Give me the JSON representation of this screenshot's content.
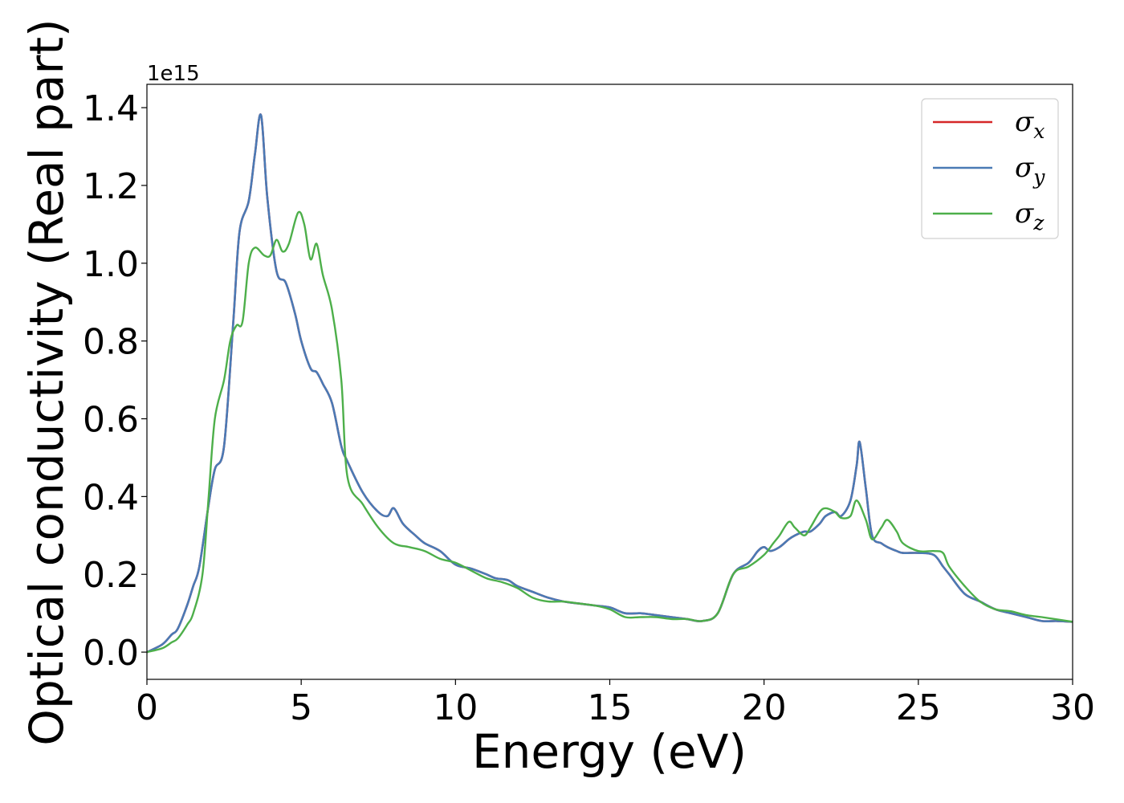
{
  "chart_data": {
    "type": "line",
    "xlabel": "Energy (eV)",
    "ylabel": "Optical conductivity (Real part)",
    "y_offset_label": "1e15",
    "xlim": [
      0,
      30
    ],
    "ylim": [
      -0.07,
      1.46
    ],
    "x_ticks": [
      0,
      5,
      10,
      15,
      20,
      25,
      30
    ],
    "x_tick_labels": [
      "0",
      "5",
      "10",
      "15",
      "20",
      "25",
      "30"
    ],
    "y_ticks": [
      0.0,
      0.2,
      0.4,
      0.6,
      0.8,
      1.0,
      1.2,
      1.4
    ],
    "y_tick_labels": [
      "0.0",
      "0.2",
      "0.4",
      "0.6",
      "0.8",
      "1.0",
      "1.2",
      "1.4"
    ],
    "grid": false,
    "legend_position": "top-right",
    "series": [
      {
        "name": "σx",
        "symbol": "σ",
        "subscript": "x",
        "color": "#d62728",
        "x": [
          0,
          0.5,
          0.8,
          1.0,
          1.3,
          1.5,
          1.7,
          2.0,
          2.2,
          2.5,
          2.8,
          3.0,
          3.3,
          3.5,
          3.7,
          3.9,
          4.2,
          4.5,
          4.8,
          5.0,
          5.3,
          5.5,
          5.7,
          6.0,
          6.3,
          6.5,
          7.0,
          7.5,
          7.8,
          8.0,
          8.3,
          8.7,
          9.0,
          9.5,
          10.0,
          10.5,
          11.0,
          11.3,
          11.7,
          12.0,
          12.5,
          13.0,
          13.5,
          14.0,
          14.5,
          15.0,
          15.5,
          16.0,
          16.5,
          17.0,
          17.5,
          18.0,
          18.5,
          19.0,
          19.5,
          19.8,
          20.0,
          20.2,
          20.5,
          20.8,
          21.0,
          21.3,
          21.5,
          21.8,
          22.0,
          22.3,
          22.5,
          22.8,
          23.0,
          23.1,
          23.3,
          23.5,
          23.8,
          24.0,
          24.3,
          24.5,
          25.0,
          25.5,
          25.8,
          26.0,
          26.5,
          27.0,
          27.5,
          28.0,
          28.5,
          29.0,
          29.5,
          30.0
        ],
        "values": [
          0.0,
          0.02,
          0.045,
          0.06,
          0.12,
          0.17,
          0.22,
          0.38,
          0.47,
          0.53,
          0.85,
          1.08,
          1.16,
          1.28,
          1.38,
          1.17,
          0.98,
          0.95,
          0.87,
          0.8,
          0.73,
          0.72,
          0.69,
          0.64,
          0.53,
          0.49,
          0.41,
          0.36,
          0.35,
          0.37,
          0.33,
          0.3,
          0.28,
          0.26,
          0.225,
          0.215,
          0.2,
          0.19,
          0.185,
          0.17,
          0.155,
          0.14,
          0.13,
          0.125,
          0.12,
          0.115,
          0.1,
          0.1,
          0.095,
          0.09,
          0.085,
          0.08,
          0.1,
          0.2,
          0.23,
          0.26,
          0.27,
          0.26,
          0.27,
          0.29,
          0.3,
          0.31,
          0.31,
          0.33,
          0.35,
          0.36,
          0.35,
          0.39,
          0.48,
          0.54,
          0.42,
          0.3,
          0.28,
          0.27,
          0.26,
          0.255,
          0.255,
          0.25,
          0.22,
          0.2,
          0.15,
          0.13,
          0.11,
          0.1,
          0.09,
          0.08,
          0.08,
          0.078
        ]
      },
      {
        "name": "σy",
        "symbol": "σ",
        "subscript": "y",
        "color": "#4a7ab5",
        "x": [
          0,
          0.5,
          0.8,
          1.0,
          1.3,
          1.5,
          1.7,
          2.0,
          2.2,
          2.5,
          2.8,
          3.0,
          3.3,
          3.5,
          3.7,
          3.9,
          4.2,
          4.5,
          4.8,
          5.0,
          5.3,
          5.5,
          5.7,
          6.0,
          6.3,
          6.5,
          7.0,
          7.5,
          7.8,
          8.0,
          8.3,
          8.7,
          9.0,
          9.5,
          10.0,
          10.5,
          11.0,
          11.3,
          11.7,
          12.0,
          12.5,
          13.0,
          13.5,
          14.0,
          14.5,
          15.0,
          15.5,
          16.0,
          16.5,
          17.0,
          17.5,
          18.0,
          18.5,
          19.0,
          19.5,
          19.8,
          20.0,
          20.2,
          20.5,
          20.8,
          21.0,
          21.3,
          21.5,
          21.8,
          22.0,
          22.3,
          22.5,
          22.8,
          23.0,
          23.1,
          23.3,
          23.5,
          23.8,
          24.0,
          24.3,
          24.5,
          25.0,
          25.5,
          25.8,
          26.0,
          26.5,
          27.0,
          27.5,
          28.0,
          28.5,
          29.0,
          29.5,
          30.0
        ],
        "values": [
          0.0,
          0.02,
          0.045,
          0.06,
          0.12,
          0.17,
          0.22,
          0.38,
          0.47,
          0.53,
          0.85,
          1.08,
          1.16,
          1.28,
          1.38,
          1.17,
          0.98,
          0.95,
          0.87,
          0.8,
          0.73,
          0.72,
          0.69,
          0.64,
          0.53,
          0.49,
          0.41,
          0.36,
          0.35,
          0.37,
          0.33,
          0.3,
          0.28,
          0.26,
          0.225,
          0.215,
          0.2,
          0.19,
          0.185,
          0.17,
          0.155,
          0.14,
          0.13,
          0.125,
          0.12,
          0.115,
          0.1,
          0.1,
          0.095,
          0.09,
          0.085,
          0.08,
          0.1,
          0.2,
          0.23,
          0.26,
          0.27,
          0.26,
          0.27,
          0.29,
          0.3,
          0.31,
          0.31,
          0.33,
          0.35,
          0.36,
          0.35,
          0.39,
          0.48,
          0.54,
          0.42,
          0.3,
          0.28,
          0.27,
          0.26,
          0.255,
          0.255,
          0.25,
          0.22,
          0.2,
          0.15,
          0.13,
          0.11,
          0.1,
          0.09,
          0.08,
          0.08,
          0.078
        ]
      },
      {
        "name": "σz",
        "symbol": "σ",
        "subscript": "z",
        "color": "#4daf4a",
        "x": [
          0,
          0.5,
          0.8,
          1.0,
          1.3,
          1.5,
          1.8,
          2.0,
          2.2,
          2.5,
          2.7,
          2.9,
          3.1,
          3.3,
          3.5,
          3.8,
          4.0,
          4.2,
          4.4,
          4.6,
          4.9,
          5.1,
          5.3,
          5.5,
          5.7,
          6.0,
          6.3,
          6.5,
          7.0,
          7.5,
          8.0,
          8.5,
          9.0,
          9.5,
          10.0,
          10.5,
          11.0,
          11.5,
          12.0,
          12.5,
          13.0,
          13.5,
          14.0,
          14.5,
          15.0,
          15.5,
          16.0,
          16.5,
          17.0,
          17.5,
          18.0,
          18.5,
          19.0,
          19.5,
          20.0,
          20.3,
          20.5,
          20.8,
          21.0,
          21.3,
          21.5,
          21.8,
          22.0,
          22.3,
          22.5,
          22.8,
          23.0,
          23.3,
          23.5,
          23.8,
          24.0,
          24.3,
          24.5,
          25.0,
          25.5,
          25.8,
          26.0,
          26.5,
          27.0,
          27.5,
          28.0,
          28.5,
          29.0,
          30.0
        ],
        "values": [
          0.0,
          0.01,
          0.025,
          0.035,
          0.07,
          0.1,
          0.2,
          0.4,
          0.6,
          0.7,
          0.8,
          0.84,
          0.85,
          1.0,
          1.04,
          1.02,
          1.02,
          1.06,
          1.03,
          1.05,
          1.13,
          1.1,
          1.01,
          1.05,
          0.97,
          0.88,
          0.7,
          0.45,
          0.38,
          0.32,
          0.28,
          0.27,
          0.26,
          0.24,
          0.23,
          0.21,
          0.19,
          0.18,
          0.165,
          0.14,
          0.13,
          0.13,
          0.125,
          0.12,
          0.11,
          0.09,
          0.09,
          0.09,
          0.085,
          0.085,
          0.08,
          0.1,
          0.2,
          0.22,
          0.25,
          0.28,
          0.3,
          0.335,
          0.32,
          0.3,
          0.32,
          0.36,
          0.37,
          0.36,
          0.345,
          0.35,
          0.39,
          0.34,
          0.29,
          0.32,
          0.34,
          0.31,
          0.28,
          0.26,
          0.26,
          0.255,
          0.22,
          0.17,
          0.13,
          0.11,
          0.105,
          0.095,
          0.09,
          0.078
        ]
      }
    ]
  }
}
